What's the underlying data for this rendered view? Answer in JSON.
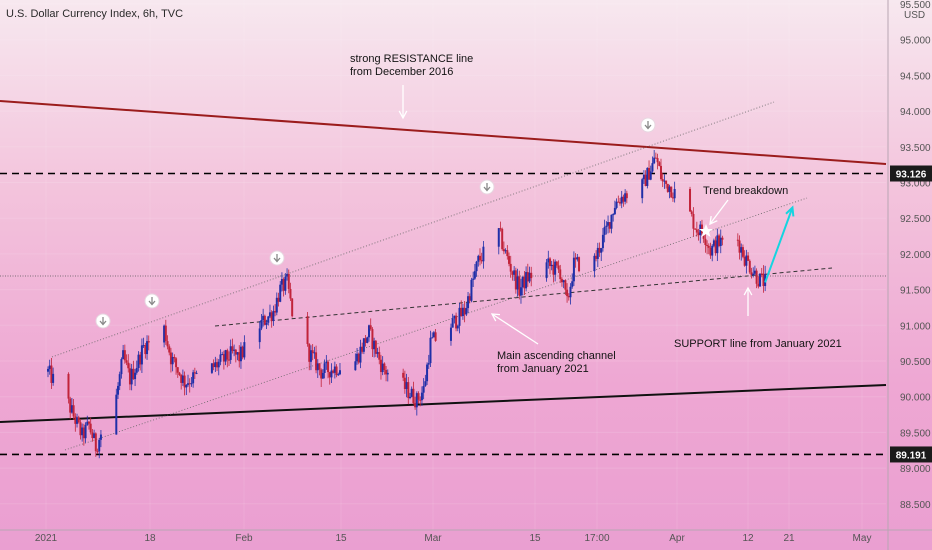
{
  "chart_data": {
    "type": "candlestick",
    "title": "U.S. Dollar Currency Index, 6h, TVC",
    "currency": "USD",
    "y_axis_ticks": [
      "95.500",
      "95.000",
      "94.500",
      "94.000",
      "93.500",
      "93.000",
      "92.500",
      "92.000",
      "91.500",
      "91.000",
      "90.500",
      "90.000",
      "89.500",
      "89.000",
      "88.500"
    ],
    "x_axis_ticks": [
      "2021",
      "18",
      "Feb",
      "15",
      "Mar",
      "15",
      "17:00",
      "Apr",
      "12",
      "21",
      "May"
    ],
    "ylim": [
      88.1,
      95.55
    ],
    "price_labels": [
      {
        "value": 93.126,
        "text": "93.126"
      },
      {
        "value": 89.191,
        "text": "89.191"
      }
    ],
    "annotations": {
      "resistance": [
        "strong RESISTANCE line",
        "from December 2016"
      ],
      "channel": [
        "Main ascending channel",
        "from January 2021"
      ],
      "support": "SUPPORT line from January 2021",
      "breakdown": "Trend breakdown"
    },
    "price_path": [
      {
        "date": "2021-01-01",
        "price": 90.35
      },
      {
        "date": "2021-01-04",
        "price": 89.9
      },
      {
        "date": "2021-01-06",
        "price": 89.45
      },
      {
        "date": "2021-01-07",
        "price": 89.6
      },
      {
        "date": "2021-01-08",
        "price": 89.3
      },
      {
        "date": "2021-01-11",
        "price": 90.0
      },
      {
        "date": "2021-01-12",
        "price": 90.55
      },
      {
        "date": "2021-01-13",
        "price": 90.25
      },
      {
        "date": "2021-01-14",
        "price": 90.45
      },
      {
        "date": "2021-01-15",
        "price": 90.7
      },
      {
        "date": "2021-01-18",
        "price": 90.95
      },
      {
        "date": "2021-01-19",
        "price": 90.55
      },
      {
        "date": "2021-01-21",
        "price": 90.2
      },
      {
        "date": "2021-01-25",
        "price": 90.4
      },
      {
        "date": "2021-01-28",
        "price": 90.6
      },
      {
        "date": "2021-01-29",
        "price": 90.55
      },
      {
        "date": "2021-02-01",
        "price": 91.0
      },
      {
        "date": "2021-02-03",
        "price": 91.2
      },
      {
        "date": "2021-02-04",
        "price": 91.5
      },
      {
        "date": "2021-02-05",
        "price": 91.6
      },
      {
        "date": "2021-02-06",
        "price": 91.05
      },
      {
        "date": "2021-02-08",
        "price": 90.65
      },
      {
        "date": "2021-02-10",
        "price": 90.35
      },
      {
        "date": "2021-02-12",
        "price": 90.4
      },
      {
        "date": "2021-02-15",
        "price": 90.5
      },
      {
        "date": "2021-02-17",
        "price": 90.9
      },
      {
        "date": "2021-02-19",
        "price": 90.4
      },
      {
        "date": "2021-02-22",
        "price": 90.15
      },
      {
        "date": "2021-02-24",
        "price": 89.95
      },
      {
        "date": "2021-02-25",
        "price": 90.1
      },
      {
        "date": "2021-02-26",
        "price": 90.75
      },
      {
        "date": "2021-03-01",
        "price": 91.0
      },
      {
        "date": "2021-03-03",
        "price": 91.2
      },
      {
        "date": "2021-03-05",
        "price": 91.9
      },
      {
        "date": "2021-03-08",
        "price": 92.3
      },
      {
        "date": "2021-03-09",
        "price": 92.0
      },
      {
        "date": "2021-03-11",
        "price": 91.5
      },
      {
        "date": "2021-03-12",
        "price": 91.65
      },
      {
        "date": "2021-03-15",
        "price": 91.85
      },
      {
        "date": "2021-03-17",
        "price": 91.75
      },
      {
        "date": "2021-03-18",
        "price": 91.3
      },
      {
        "date": "2021-03-19",
        "price": 91.85
      },
      {
        "date": "2021-03-22",
        "price": 91.9
      },
      {
        "date": "2021-03-24",
        "price": 92.4
      },
      {
        "date": "2021-03-25",
        "price": 92.7
      },
      {
        "date": "2021-03-26",
        "price": 92.8
      },
      {
        "date": "2021-03-29",
        "price": 92.95
      },
      {
        "date": "2021-03-31",
        "price": 93.35
      },
      {
        "date": "2021-04-01",
        "price": 93.0
      },
      {
        "date": "2021-04-02",
        "price": 92.95
      },
      {
        "date": "2021-04-05",
        "price": 92.55
      },
      {
        "date": "2021-04-06",
        "price": 92.35
      },
      {
        "date": "2021-04-07",
        "price": 92.3
      },
      {
        "date": "2021-04-08",
        "price": 92.05
      },
      {
        "date": "2021-04-09",
        "price": 92.15
      },
      {
        "date": "2021-04-12",
        "price": 92.2
      },
      {
        "date": "2021-04-13",
        "price": 91.95
      },
      {
        "date": "2021-04-15",
        "price": 91.65
      },
      {
        "date": "2021-04-16",
        "price": 91.6
      }
    ],
    "projection": [
      {
        "date": "2021-04-16",
        "price": 91.6
      },
      {
        "date": "2021-04-20",
        "price": 92.65
      }
    ]
  }
}
